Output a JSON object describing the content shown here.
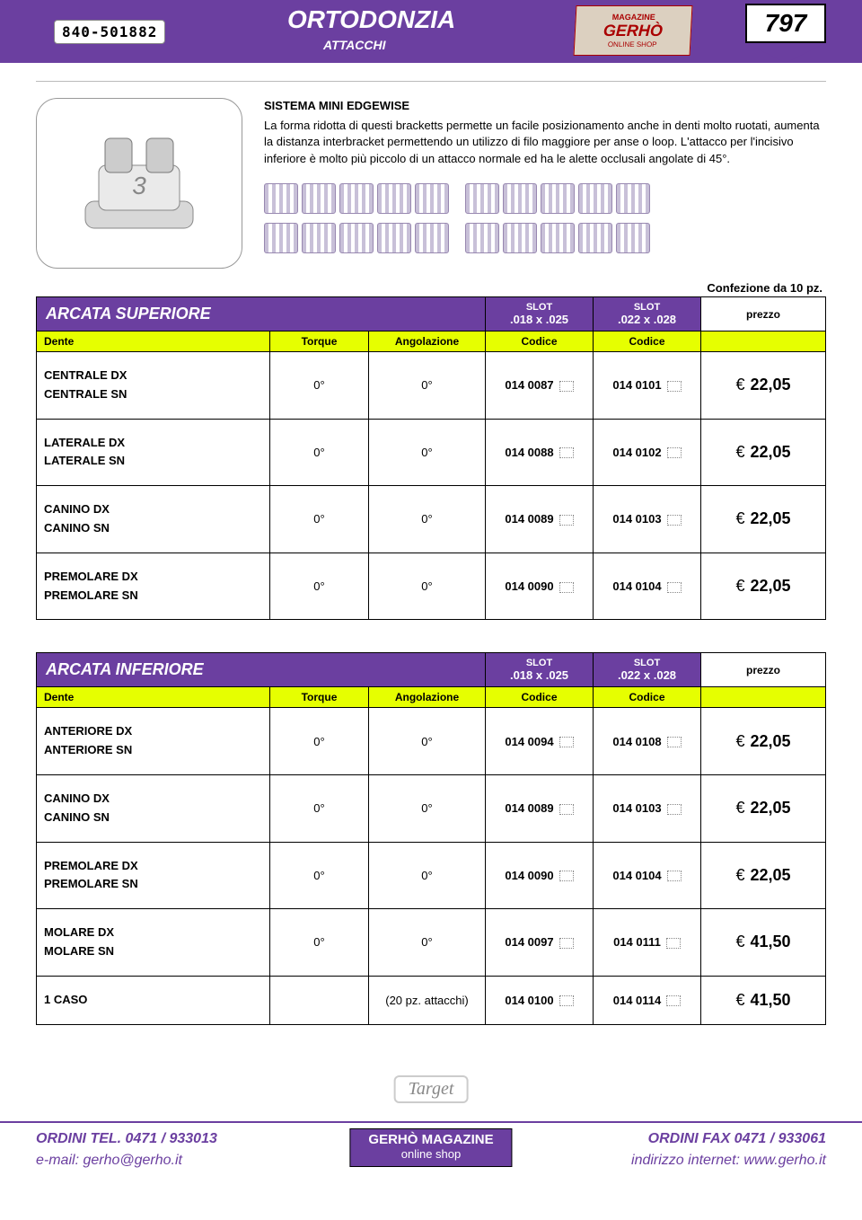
{
  "header": {
    "numbox": "840-501882",
    "title": "ORTODONZIA",
    "subtitle": "ATTACCHI",
    "magazine_l1": "MAGAZINE",
    "magazine_l2": "GERHÒ",
    "magazine_l3": "ONLINE SHOP",
    "page_number": "797"
  },
  "colors": {
    "brand_purple": "#6b3fa0",
    "highlight_yellow": "#e6ff00"
  },
  "product": {
    "title": "SISTEMA MINI EDGEWISE",
    "description": "La forma ridotta di questi bracketts permette un facile posizionamento anche in denti molto ruotati, aumenta la distanza interbracket permettendo un utilizzo di filo maggiore per anse o loop. L'attacco per l'incisivo inferiore è molto più piccolo di un attacco normale ed ha le alette occlusali angolate di 45°."
  },
  "pack_note": "Confezione da 10 pz.",
  "column_headers": {
    "slot_word": "SLOT",
    "slot1": ".018 x .025",
    "slot2": ".022 x .028",
    "price": "prezzo",
    "dente": "Dente",
    "torque": "Torque",
    "ang": "Angolazione",
    "codice": "Codice"
  },
  "table_sup": {
    "title": "ARCATA SUPERIORE",
    "rows": [
      {
        "d1": "CENTRALE DX",
        "d2": "CENTRALE SN",
        "torque": "0°",
        "ang": "0°",
        "c1": "014 0087",
        "c2": "014 0101",
        "price": "22,05"
      },
      {
        "d1": "LATERALE DX",
        "d2": "LATERALE SN",
        "torque": "0°",
        "ang": "0°",
        "c1": "014 0088",
        "c2": "014 0102",
        "price": "22,05"
      },
      {
        "d1": "CANINO DX",
        "d2": "CANINO SN",
        "torque": "0°",
        "ang": "0°",
        "c1": "014 0089",
        "c2": "014 0103",
        "price": "22,05"
      },
      {
        "d1": "PREMOLARE DX",
        "d2": "PREMOLARE SN",
        "torque": "0°",
        "ang": "0°",
        "c1": "014 0090",
        "c2": "014 0104",
        "price": "22,05"
      }
    ]
  },
  "table_inf": {
    "title": "ARCATA INFERIORE",
    "rows": [
      {
        "d1": "ANTERIORE DX",
        "d2": "ANTERIORE SN",
        "torque": "0°",
        "ang": "0°",
        "c1": "014 0094",
        "c2": "014 0108",
        "price": "22,05"
      },
      {
        "d1": "CANINO DX",
        "d2": "CANINO SN",
        "torque": "0°",
        "ang": "0°",
        "c1": "014 0089",
        "c2": "014 0103",
        "price": "22,05"
      },
      {
        "d1": "PREMOLARE DX",
        "d2": "PREMOLARE SN",
        "torque": "0°",
        "ang": "0°",
        "c1": "014 0090",
        "c2": "014 0104",
        "price": "22,05"
      },
      {
        "d1": "MOLARE DX",
        "d2": "MOLARE SN",
        "torque": "0°",
        "ang": "0°",
        "c1": "014 0097",
        "c2": "014 0111",
        "price": "41,50"
      },
      {
        "d1": "1 CASO",
        "d2": "",
        "torque": "",
        "ang": "(20 pz. attacchi)",
        "c1": "014 0100",
        "c2": "014 0114",
        "price": "41,50"
      }
    ]
  },
  "footer_logo": "Target",
  "footer": {
    "left_l1": "ORDINI TEL. 0471 / 933013",
    "left_l2": "e-mail: gerho@gerho.it",
    "center_l1": "GERHÒ MAGAZINE",
    "center_l2": "online shop",
    "right_l1": "ORDINI FAX 0471 / 933061",
    "right_l2": "indirizzo internet: www.gerho.it"
  }
}
